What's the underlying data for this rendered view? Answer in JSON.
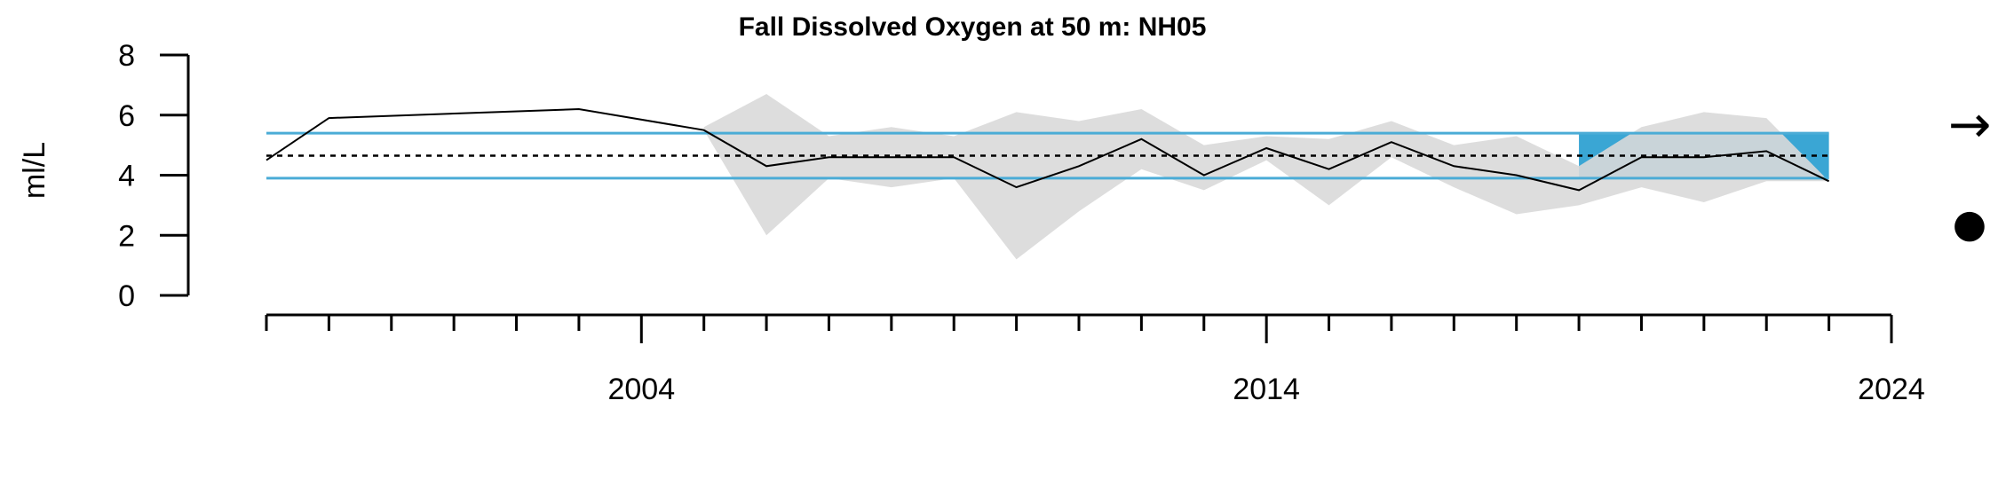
{
  "chart_data": {
    "type": "line",
    "title": "Fall Dissolved Oxygen at 50 m: NH05",
    "ylabel": "ml/L",
    "xlabel": "",
    "ylim": [
      0,
      8
    ],
    "yticks": [
      0,
      2,
      4,
      6,
      8
    ],
    "xlim": [
      1998,
      2024
    ],
    "xtick_labels": [
      2004,
      2014,
      2024
    ],
    "x": [
      1998,
      1999,
      2003,
      2005,
      2006,
      2007,
      2008,
      2009,
      2010,
      2011,
      2012,
      2013,
      2014,
      2015,
      2016,
      2017,
      2018,
      2019,
      2020,
      2021,
      2022,
      2023
    ],
    "series": [
      {
        "values": [
          4.5,
          5.9,
          6.2,
          5.5,
          4.3,
          4.6,
          4.6,
          4.6,
          3.6,
          4.3,
          5.2,
          4.0,
          4.9,
          4.2,
          5.1,
          4.3,
          4.0,
          3.5,
          4.6,
          4.6,
          4.8,
          3.8
        ],
        "color": "#000000"
      }
    ],
    "range_band": {
      "x": [
        2005,
        2006,
        2007,
        2008,
        2009,
        2010,
        2011,
        2012,
        2013,
        2014,
        2015,
        2016,
        2017,
        2018,
        2019,
        2020,
        2021,
        2022,
        2023
      ],
      "upper": [
        5.6,
        6.7,
        5.3,
        5.6,
        5.3,
        6.1,
        5.8,
        6.2,
        5.0,
        5.3,
        5.2,
        5.8,
        5.0,
        5.3,
        4.3,
        5.6,
        6.1,
        5.9,
        3.8
      ],
      "lower": [
        5.5,
        2.0,
        3.9,
        3.6,
        3.9,
        1.2,
        2.8,
        4.2,
        3.5,
        4.5,
        3.0,
        4.6,
        3.6,
        2.7,
        3.0,
        3.6,
        3.1,
        3.8,
        3.8
      ],
      "color": "#d9d9d9"
    },
    "reference_lines": {
      "mean": 4.65,
      "upper_sd": 5.4,
      "lower_sd": 3.9,
      "sd_color": "#4bacd6",
      "mean_color": "#000000"
    },
    "highlight": {
      "x_start": 2019,
      "x_end": 2023,
      "color": "#3aa6d4"
    },
    "trend_symbol": "→",
    "status_symbol": "●"
  }
}
